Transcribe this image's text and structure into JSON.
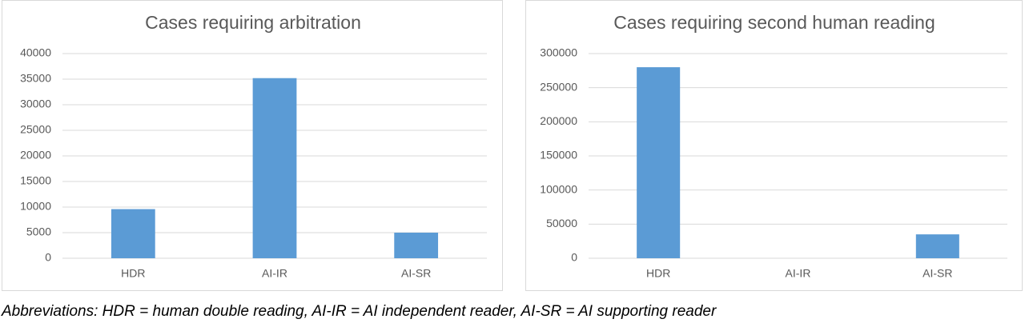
{
  "chart_data": [
    {
      "type": "bar",
      "title": "Cases requiring arbitration",
      "categories": [
        "HDR",
        "AI-IR",
        "AI-SR"
      ],
      "values": [
        9600,
        35200,
        5000
      ],
      "color": "#5b9bd5",
      "ylim": [
        0,
        40000
      ],
      "yticks": [
        0,
        5000,
        10000,
        15000,
        20000,
        25000,
        30000,
        35000,
        40000
      ],
      "grid": true
    },
    {
      "type": "bar",
      "title": "Cases requiring second human reading",
      "categories": [
        "HDR",
        "AI-IR",
        "AI-SR"
      ],
      "values": [
        280000,
        0,
        35000
      ],
      "color": "#5b9bd5",
      "ylim": [
        0,
        300000
      ],
      "yticks": [
        0,
        50000,
        100000,
        150000,
        200000,
        250000,
        300000
      ],
      "grid": true
    }
  ],
  "caption": "Abbreviations: HDR = human double reading, AI-IR = AI independent reader, AI-SR = AI supporting reader"
}
